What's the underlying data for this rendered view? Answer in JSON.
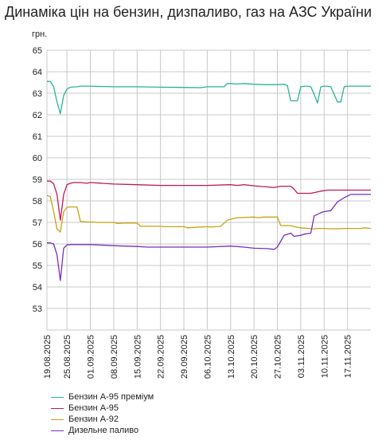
{
  "chart_data": {
    "type": "line",
    "title": "Динаміка цін на бензин, дизпаливо, газ на АЗС України",
    "ylabel": "грн.",
    "ylim": [
      52,
      65
    ],
    "yticks": [
      53,
      54,
      55,
      56,
      57,
      58,
      59,
      60,
      61,
      62,
      63,
      64,
      65
    ],
    "x_start": "19.08.2025",
    "x_end": "24.11.2025",
    "x_ticks": [
      "19.08.2025",
      "25.08.2025",
      "01.09.2025",
      "08.09.2025",
      "15.09.2025",
      "22.09.2025",
      "29.09.2025",
      "06.10.2025",
      "13.10.2025",
      "20.10.2025",
      "27.10.2025",
      "03.11.2025",
      "10.11.2025",
      "17.11.2025"
    ],
    "grid": true,
    "legend_position": "bottom",
    "series": [
      {
        "name": "Бензин А-95 преміум",
        "color": "#2ab399",
        "points": [
          [
            "19.08.2025",
            63.55
          ],
          [
            "20.08.2025",
            63.55
          ],
          [
            "21.08.2025",
            63.3
          ],
          [
            "22.08.2025",
            62.6
          ],
          [
            "23.08.2025",
            62.05
          ],
          [
            "24.08.2025",
            62.9
          ],
          [
            "25.08.2025",
            63.2
          ],
          [
            "26.08.2025",
            63.28
          ],
          [
            "28.08.2025",
            63.3
          ],
          [
            "29.08.2025",
            63.33
          ],
          [
            "01.09.2025",
            63.33
          ],
          [
            "08.09.2025",
            63.3
          ],
          [
            "14.09.2025",
            63.3
          ],
          [
            "15.09.2025",
            63.3
          ],
          [
            "22.09.2025",
            63.28
          ],
          [
            "29.09.2025",
            63.27
          ],
          [
            "04.10.2025",
            63.26
          ],
          [
            "06.10.2025",
            63.3
          ],
          [
            "11.10.2025",
            63.3
          ],
          [
            "12.10.2025",
            63.45
          ],
          [
            "13.10.2025",
            63.45
          ],
          [
            "15.10.2025",
            63.43
          ],
          [
            "17.10.2025",
            63.45
          ],
          [
            "20.10.2025",
            63.42
          ],
          [
            "23.10.2025",
            63.4
          ],
          [
            "27.10.2025",
            63.4
          ],
          [
            "29.10.2025",
            63.42
          ],
          [
            "30.10.2025",
            63.35
          ],
          [
            "31.10.2025",
            62.65
          ],
          [
            "01.11.2025",
            62.65
          ],
          [
            "02.11.2025",
            62.65
          ],
          [
            "03.11.2025",
            63.3
          ],
          [
            "04.11.2025",
            63.33
          ],
          [
            "05.11.2025",
            63.33
          ],
          [
            "06.11.2025",
            63.3
          ],
          [
            "07.11.2025",
            62.95
          ],
          [
            "08.11.2025",
            62.55
          ],
          [
            "09.11.2025",
            63.3
          ],
          [
            "10.11.2025",
            63.33
          ],
          [
            "11.11.2025",
            63.33
          ],
          [
            "12.11.2025",
            63.3
          ],
          [
            "13.11.2025",
            62.95
          ],
          [
            "14.11.2025",
            62.6
          ],
          [
            "15.11.2025",
            62.6
          ],
          [
            "16.11.2025",
            63.3
          ],
          [
            "17.11.2025",
            63.33
          ],
          [
            "24.11.2025",
            63.33
          ]
        ]
      },
      {
        "name": "Бензин А-95",
        "color": "#c2185b",
        "points": [
          [
            "19.08.2025",
            58.92
          ],
          [
            "20.08.2025",
            58.92
          ],
          [
            "21.08.2025",
            58.8
          ],
          [
            "22.08.2025",
            58.3
          ],
          [
            "23.08.2025",
            57.1
          ],
          [
            "24.08.2025",
            58.3
          ],
          [
            "25.08.2025",
            58.75
          ],
          [
            "26.08.2025",
            58.82
          ],
          [
            "27.08.2025",
            58.85
          ],
          [
            "29.08.2025",
            58.85
          ],
          [
            "31.08.2025",
            58.82
          ],
          [
            "01.09.2025",
            58.85
          ],
          [
            "08.09.2025",
            58.78
          ],
          [
            "15.09.2025",
            58.75
          ],
          [
            "22.09.2025",
            58.72
          ],
          [
            "29.09.2025",
            58.72
          ],
          [
            "06.10.2025",
            58.72
          ],
          [
            "13.10.2025",
            58.75
          ],
          [
            "15.10.2025",
            58.72
          ],
          [
            "17.10.2025",
            58.75
          ],
          [
            "20.10.2025",
            58.7
          ],
          [
            "24.10.2025",
            58.65
          ],
          [
            "26.10.2025",
            58.62
          ],
          [
            "28.10.2025",
            58.68
          ],
          [
            "31.10.2025",
            58.68
          ],
          [
            "01.11.2025",
            58.55
          ],
          [
            "02.11.2025",
            58.35
          ],
          [
            "06.11.2025",
            58.35
          ],
          [
            "08.11.2025",
            58.42
          ],
          [
            "09.11.2025",
            58.45
          ],
          [
            "11.11.2025",
            58.5
          ],
          [
            "24.11.2025",
            58.5
          ]
        ]
      },
      {
        "name": "Бензин А-92",
        "color": "#c8a214",
        "points": [
          [
            "19.08.2025",
            58.25
          ],
          [
            "20.08.2025",
            58.2
          ],
          [
            "21.08.2025",
            57.5
          ],
          [
            "22.08.2025",
            56.7
          ],
          [
            "23.08.2025",
            56.55
          ],
          [
            "24.08.2025",
            57.5
          ],
          [
            "25.08.2025",
            57.7
          ],
          [
            "26.08.2025",
            57.72
          ],
          [
            "28.08.2025",
            57.72
          ],
          [
            "29.08.2025",
            57.05
          ],
          [
            "31.08.2025",
            57.02
          ],
          [
            "01.09.2025",
            57.02
          ],
          [
            "03.09.2025",
            57.0
          ],
          [
            "08.09.2025",
            57.0
          ],
          [
            "09.09.2025",
            56.95
          ],
          [
            "11.09.2025",
            56.97
          ],
          [
            "15.09.2025",
            56.97
          ],
          [
            "16.09.2025",
            56.82
          ],
          [
            "18.09.2025",
            56.82
          ],
          [
            "22.09.2025",
            56.82
          ],
          [
            "23.09.2025",
            56.8
          ],
          [
            "29.09.2025",
            56.8
          ],
          [
            "30.09.2025",
            56.75
          ],
          [
            "06.10.2025",
            56.8
          ],
          [
            "07.10.2025",
            56.78
          ],
          [
            "10.10.2025",
            56.82
          ],
          [
            "12.10.2025",
            57.1
          ],
          [
            "13.10.2025",
            57.15
          ],
          [
            "15.10.2025",
            57.22
          ],
          [
            "20.10.2025",
            57.25
          ],
          [
            "21.10.2025",
            57.22
          ],
          [
            "23.10.2025",
            57.25
          ],
          [
            "27.10.2025",
            57.25
          ],
          [
            "28.10.2025",
            56.85
          ],
          [
            "31.10.2025",
            56.85
          ],
          [
            "01.11.2025",
            56.8
          ],
          [
            "03.11.2025",
            56.75
          ],
          [
            "07.11.2025",
            56.7
          ],
          [
            "08.11.2025",
            56.72
          ],
          [
            "10.11.2025",
            56.72
          ],
          [
            "13.11.2025",
            56.7
          ],
          [
            "16.11.2025",
            56.72
          ],
          [
            "21.11.2025",
            56.72
          ],
          [
            "22.11.2025",
            56.75
          ],
          [
            "24.11.2025",
            56.72
          ]
        ]
      },
      {
        "name": "Дизельне паливо",
        "color": "#7b2fbf",
        "points": [
          [
            "19.08.2025",
            56.05
          ],
          [
            "20.08.2025",
            56.05
          ],
          [
            "21.08.2025",
            56.0
          ],
          [
            "22.08.2025",
            55.5
          ],
          [
            "23.08.2025",
            54.3
          ],
          [
            "24.08.2025",
            55.8
          ],
          [
            "25.08.2025",
            55.95
          ],
          [
            "26.08.2025",
            55.97
          ],
          [
            "01.09.2025",
            55.97
          ],
          [
            "08.09.2025",
            55.92
          ],
          [
            "11.09.2025",
            55.9
          ],
          [
            "15.09.2025",
            55.88
          ],
          [
            "18.09.2025",
            55.85
          ],
          [
            "22.09.2025",
            55.85
          ],
          [
            "29.09.2025",
            55.85
          ],
          [
            "06.10.2025",
            55.85
          ],
          [
            "13.10.2025",
            55.9
          ],
          [
            "17.10.2025",
            55.85
          ],
          [
            "20.10.2025",
            55.8
          ],
          [
            "24.10.2025",
            55.78
          ],
          [
            "26.10.2025",
            55.75
          ],
          [
            "27.10.2025",
            55.85
          ],
          [
            "29.10.2025",
            56.4
          ],
          [
            "31.10.2025",
            56.5
          ],
          [
            "01.11.2025",
            56.35
          ],
          [
            "03.11.2025",
            56.4
          ],
          [
            "04.11.2025",
            56.45
          ],
          [
            "06.11.2025",
            56.5
          ],
          [
            "07.11.2025",
            57.3
          ],
          [
            "09.11.2025",
            57.45
          ],
          [
            "10.11.2025",
            57.5
          ],
          [
            "12.11.2025",
            57.55
          ],
          [
            "14.11.2025",
            57.95
          ],
          [
            "16.11.2025",
            58.15
          ],
          [
            "18.11.2025",
            58.3
          ],
          [
            "24.11.2025",
            58.3
          ]
        ]
      }
    ]
  }
}
